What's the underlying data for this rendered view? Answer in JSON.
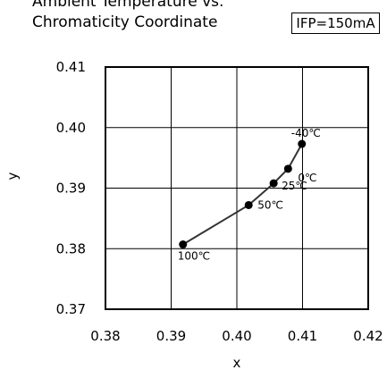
{
  "chart_data": {
    "type": "line",
    "title": [
      "Ambient Temperature vs.",
      "Chromaticity Coordinate"
    ],
    "condition_label": "IFP=150mA",
    "xlabel": "x",
    "ylabel": "y",
    "xlim": [
      0.38,
      0.42
    ],
    "ylim": [
      0.37,
      0.41
    ],
    "xticks": [
      "0.38",
      "0.39",
      "0.40",
      "0.41",
      "0.42"
    ],
    "yticks": [
      "0.37",
      "0.38",
      "0.39",
      "0.40",
      "0.41"
    ],
    "grid": true,
    "series": [
      {
        "points": [
          {
            "x": 0.3918,
            "y": 0.3807,
            "label": "100℃"
          },
          {
            "x": 0.4018,
            "y": 0.3872,
            "label": "50℃"
          },
          {
            "x": 0.4056,
            "y": 0.3908,
            "label": "25℃"
          },
          {
            "x": 0.4078,
            "y": 0.3932,
            "label": "0℃"
          },
          {
            "x": 0.4099,
            "y": 0.3973,
            "label": "-40℃"
          }
        ]
      }
    ]
  }
}
